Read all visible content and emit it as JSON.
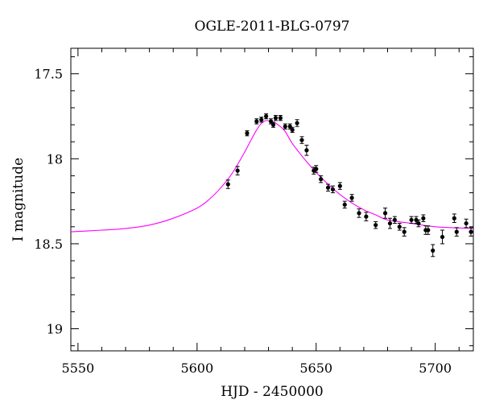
{
  "chart_data": {
    "type": "scatter",
    "title": "OGLE-2011-BLG-0797",
    "xlabel": "HJD - 2450000",
    "ylabel": "I magnitude",
    "xlim": [
      5547,
      5716
    ],
    "ylim": [
      19.13,
      17.35
    ],
    "y_inverted": true,
    "grid": false,
    "xticks": [
      5550,
      5600,
      5650,
      5700
    ],
    "xtick_labels": [
      "5550",
      "5600",
      "5650",
      "5700"
    ],
    "yticks": [
      17.5,
      18,
      18.5,
      19
    ],
    "ytick_labels": [
      "17.5",
      "18",
      "18.5",
      "19"
    ],
    "colors": {
      "data": "#000000",
      "model": "#ff00ff"
    },
    "series": [
      {
        "kind": "points_with_errorbars",
        "x": [
          5613,
          5617,
          5621,
          5625,
          5627,
          5629,
          5631,
          5632,
          5633,
          5635,
          5637,
          5639,
          5640,
          5642,
          5644,
          5646,
          5649,
          5650,
          5652,
          5655,
          5657,
          5660,
          5662,
          5665,
          5668,
          5671,
          5675,
          5679,
          5681,
          5683,
          5685,
          5687,
          5690,
          5692,
          5693,
          5695,
          5696,
          5697,
          5699,
          5703,
          5708,
          5709,
          5713,
          5715
        ],
        "y": [
          18.15,
          18.07,
          17.85,
          17.78,
          17.77,
          17.75,
          17.78,
          17.8,
          17.76,
          17.76,
          17.81,
          17.81,
          17.83,
          17.79,
          17.89,
          17.95,
          18.07,
          18.06,
          18.12,
          18.17,
          18.18,
          18.16,
          18.27,
          18.23,
          18.32,
          18.34,
          18.39,
          18.32,
          18.38,
          18.36,
          18.4,
          18.43,
          18.36,
          18.36,
          18.38,
          18.35,
          18.42,
          18.42,
          18.54,
          18.46,
          18.35,
          18.43,
          18.38,
          18.43
        ],
        "err": [
          0.025,
          0.025,
          0.015,
          0.015,
          0.015,
          0.015,
          0.015,
          0.015,
          0.015,
          0.015,
          0.015,
          0.015,
          0.015,
          0.02,
          0.02,
          0.03,
          0.02,
          0.02,
          0.02,
          0.02,
          0.02,
          0.02,
          0.02,
          0.02,
          0.025,
          0.025,
          0.02,
          0.03,
          0.03,
          0.02,
          0.02,
          0.025,
          0.02,
          0.02,
          0.02,
          0.02,
          0.025,
          0.025,
          0.035,
          0.04,
          0.025,
          0.025,
          0.025,
          0.025
        ]
      },
      {
        "kind": "model_curve",
        "x": [
          5547,
          5560,
          5570,
          5580,
          5590,
          5600,
          5605,
          5610,
          5615,
          5620,
          5625,
          5628,
          5631,
          5634,
          5637,
          5640,
          5645,
          5650,
          5655,
          5660,
          5665,
          5670,
          5675,
          5680,
          5690,
          5700,
          5716
        ],
        "y": [
          18.43,
          18.42,
          18.41,
          18.39,
          18.35,
          18.29,
          18.24,
          18.17,
          18.08,
          17.96,
          17.83,
          17.78,
          17.78,
          17.8,
          17.84,
          17.91,
          18.0,
          18.08,
          18.15,
          18.21,
          18.26,
          18.3,
          18.33,
          18.36,
          18.38,
          18.4,
          18.41
        ]
      }
    ]
  }
}
